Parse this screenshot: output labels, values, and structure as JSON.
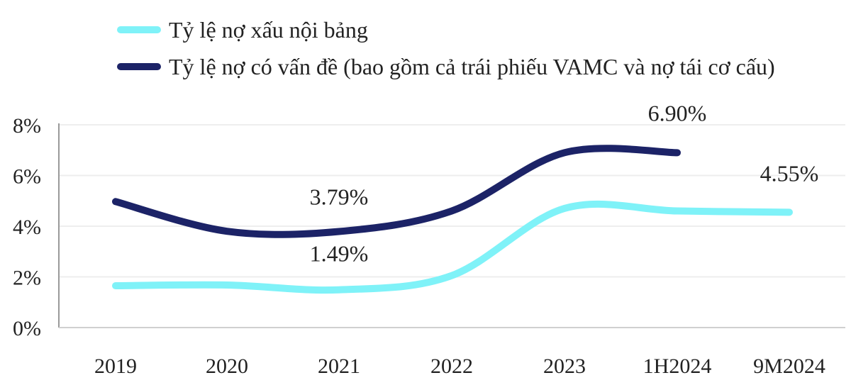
{
  "chart_data": {
    "type": "line",
    "title": "",
    "xlabel": "",
    "ylabel": "",
    "categories": [
      "2019",
      "2020",
      "2021",
      "2022",
      "2023",
      "1H2024",
      "9M2024"
    ],
    "ylim": [
      0,
      8
    ],
    "yticks": [
      "0%",
      "2%",
      "4%",
      "6%",
      "8%"
    ],
    "ytick_values": [
      0,
      2,
      4,
      6,
      8
    ],
    "grid": true,
    "legend_position": "top",
    "series": [
      {
        "name": "Tỷ lệ nợ xấu nội bảng",
        "color": "#7ff2f8",
        "values": [
          1.65,
          1.68,
          1.49,
          2.05,
          4.7,
          4.6,
          4.55
        ]
      },
      {
        "name": "Tỷ lệ nợ có vấn đề (bao gồm cả trái phiếu VAMC và nợ tái cơ cấu)",
        "color": "#1c2367",
        "values": [
          4.97,
          3.8,
          3.79,
          4.6,
          6.9,
          6.9,
          null
        ]
      }
    ],
    "annotations": [
      {
        "text": "3.79%",
        "category": "2021",
        "value": 3.79
      },
      {
        "text": "1.49%",
        "category": "2021",
        "value": 1.49
      },
      {
        "text": "6.90%",
        "category": "1H2024",
        "value": 6.9
      },
      {
        "text": "4.55%",
        "category": "9M2024",
        "value": 4.55
      }
    ]
  }
}
